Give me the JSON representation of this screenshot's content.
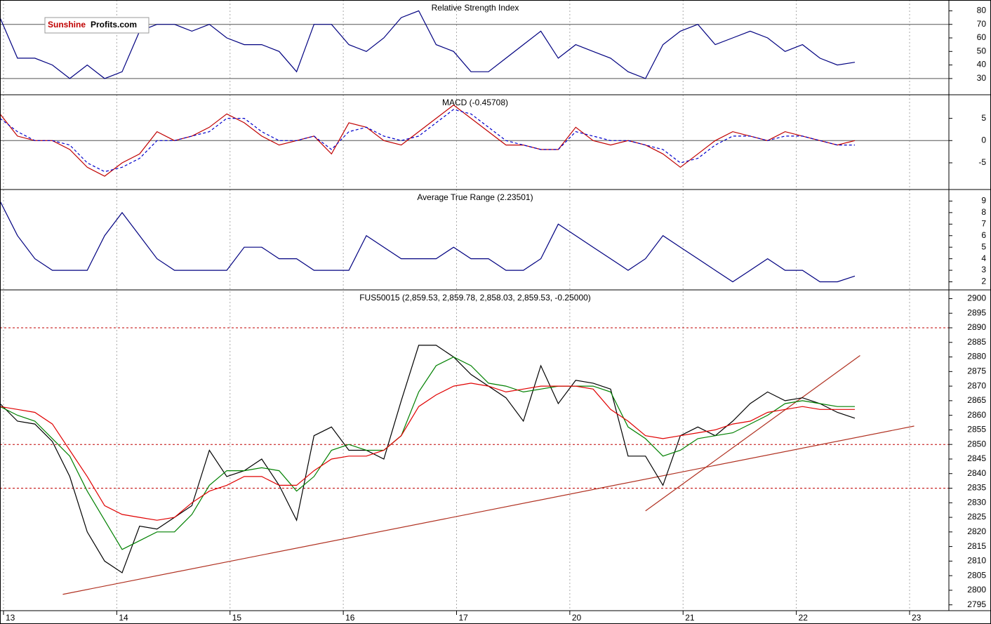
{
  "logo": {
    "part1": "Sunshine",
    "part2": "Profits.com"
  },
  "x_axis": {
    "labels": [
      "13",
      "14",
      "15",
      "16",
      "17",
      "20",
      "21",
      "22",
      "23"
    ]
  },
  "chart_data": [
    {
      "type": "line",
      "title": "Relative Strength Index",
      "ylim": [
        18,
        88
      ],
      "yticks": [
        30,
        40,
        50,
        60,
        70,
        80
      ],
      "levels": [
        30,
        70
      ],
      "series": [
        {
          "color": "#000080",
          "values": [
            75,
            45,
            45,
            40,
            30,
            40,
            30,
            35,
            65,
            70,
            70,
            65,
            70,
            60,
            55,
            55,
            50,
            35,
            70,
            70,
            55,
            50,
            60,
            75,
            80,
            55,
            50,
            35,
            35,
            45,
            55,
            65,
            45,
            55,
            50,
            45,
            35,
            30,
            55,
            65,
            70,
            55,
            60,
            65,
            60,
            50,
            55,
            45,
            40,
            42
          ]
        }
      ]
    },
    {
      "type": "line",
      "title": "MACD (-0.45708)",
      "ylim": [
        -11,
        10.3
      ],
      "yticks": [
        -5,
        0,
        5
      ],
      "levels": [
        0
      ],
      "series": [
        {
          "color": "#c00000",
          "values": [
            6,
            1,
            0,
            0,
            -2,
            -6,
            -8,
            -5,
            -3,
            2,
            0,
            1,
            3,
            6,
            4,
            1,
            -1,
            0,
            1,
            -3,
            4,
            3,
            0,
            -1,
            2,
            5,
            8,
            5,
            2,
            -1,
            -1,
            -2,
            -2,
            3,
            0,
            -1,
            0,
            -1,
            -3,
            -6,
            -3,
            0,
            2,
            1,
            0,
            2,
            1,
            0,
            -1,
            0
          ]
        },
        {
          "color": "#0000cc",
          "dashed": true,
          "values": [
            5,
            2,
            0,
            0,
            -1,
            -5,
            -7,
            -6,
            -4,
            0,
            0,
            1,
            2,
            5,
            5,
            2,
            0,
            0,
            1,
            -2,
            2,
            3,
            1,
            0,
            1,
            4,
            7,
            6,
            3,
            0,
            -1,
            -2,
            -2,
            2,
            1,
            0,
            0,
            -1,
            -2,
            -5,
            -4,
            -1,
            1,
            1,
            0,
            1,
            1,
            0,
            -1,
            -1
          ]
        }
      ]
    },
    {
      "type": "line",
      "title": "Average True Range (2.23501)",
      "ylim": [
        1.3,
        10
      ],
      "yticks": [
        2,
        3,
        4,
        5,
        6,
        7,
        8,
        9
      ],
      "series": [
        {
          "color": "#000080",
          "values": [
            9,
            6,
            4,
            3,
            3,
            3,
            6,
            8,
            6,
            4,
            3,
            3,
            3,
            3,
            5,
            5,
            4,
            4,
            3,
            3,
            3,
            6,
            5,
            4,
            4,
            4,
            5,
            4,
            4,
            3,
            3,
            4,
            7,
            6,
            5,
            4,
            3,
            4,
            6,
            5,
            4,
            3,
            2,
            3,
            4,
            3,
            3,
            2,
            2,
            2.5
          ]
        }
      ]
    },
    {
      "type": "line",
      "title": "FUS50015 (2,859.53, 2,859.78, 2,858.03, 2,859.53, -0.25000)",
      "ylim": [
        2793,
        2903
      ],
      "yticks": [
        2795,
        2800,
        2805,
        2810,
        2815,
        2820,
        2825,
        2830,
        2835,
        2840,
        2845,
        2850,
        2855,
        2860,
        2865,
        2870,
        2875,
        2880,
        2885,
        2890,
        2895,
        2900
      ],
      "levels": [
        2890,
        2850,
        2835
      ],
      "trend_lines": [
        {
          "x": [
            3.6,
            52.4
          ],
          "y": [
            2798.6,
            2856.3
          ]
        },
        {
          "x": [
            37,
            49.3
          ],
          "y": [
            2827.2,
            2880.5
          ]
        }
      ],
      "series": [
        {
          "color": "#000000",
          "values": [
            2864,
            2858,
            2857,
            2851,
            2839,
            2820,
            2810,
            2806,
            2822,
            2821,
            2825,
            2829,
            2848,
            2839,
            2841,
            2845,
            2836,
            2824,
            2853,
            2856,
            2848,
            2848,
            2845,
            2865,
            2884,
            2884,
            2880,
            2874,
            2870,
            2866,
            2858,
            2877,
            2864,
            2872,
            2871,
            2869,
            2846,
            2846,
            2836,
            2853,
            2856,
            2853,
            2858,
            2864,
            2868,
            2865,
            2866,
            2864,
            2861,
            2859
          ]
        },
        {
          "color": "#008000",
          "values": [
            2863,
            2860,
            2858,
            2852,
            2846,
            2834,
            2824,
            2814,
            2817,
            2820,
            2820,
            2826,
            2836,
            2841,
            2841,
            2842,
            2841,
            2834,
            2839,
            2848,
            2850,
            2848,
            2848,
            2853,
            2868,
            2877,
            2880,
            2877,
            2871,
            2870,
            2868,
            2869,
            2870,
            2870,
            2870,
            2868,
            2856,
            2852,
            2846,
            2848,
            2852,
            2853,
            2854,
            2857,
            2860,
            2864,
            2865,
            2864,
            2863,
            2863
          ]
        },
        {
          "color": "#e00000",
          "values": [
            2863,
            2862,
            2861,
            2857,
            2848,
            2839,
            2829,
            2826,
            2825,
            2824,
            2825,
            2830,
            2834,
            2836,
            2839,
            2839,
            2836,
            2836,
            2841,
            2845,
            2846,
            2846,
            2848,
            2853,
            2863,
            2867,
            2870,
            2871,
            2870,
            2868,
            2869,
            2870,
            2870,
            2870,
            2869,
            2862,
            2858,
            2853,
            2852,
            2853,
            2854,
            2855,
            2857,
            2858,
            2861,
            2862,
            2863,
            2862,
            2862,
            2862
          ]
        }
      ]
    }
  ]
}
